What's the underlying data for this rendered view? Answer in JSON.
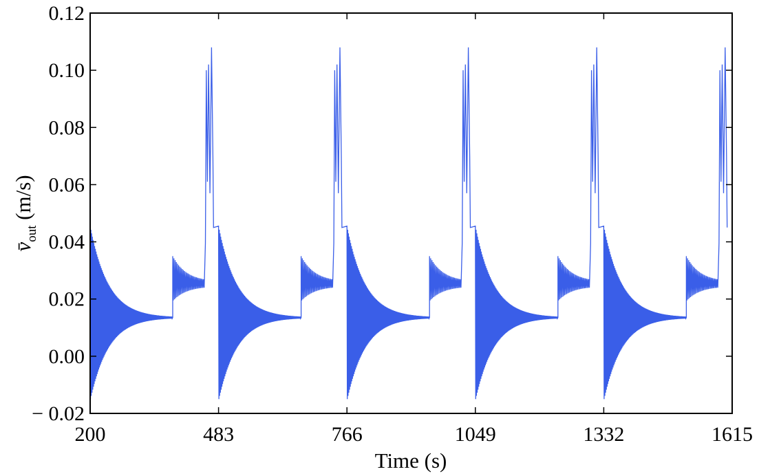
{
  "chart_data": {
    "type": "line",
    "title": "",
    "xlabel": "Time (s)",
    "ylabel_symbol": "v̄",
    "ylabel_subscript": "out",
    "ylabel_unit": " (m/s)",
    "xlim": [
      200,
      1615
    ],
    "ylim": [
      -0.02,
      0.12
    ],
    "x_ticks": [
      200,
      483,
      766,
      1049,
      1332,
      1615
    ],
    "x_tick_labels": [
      "200",
      "483",
      "766",
      "1049",
      "1332",
      "1615"
    ],
    "y_ticks": [
      -0.02,
      0.0,
      0.02,
      0.04,
      0.06,
      0.08,
      0.1,
      0.12
    ],
    "y_tick_labels": [
      "− 0.02",
      "0.00",
      "0.02",
      "0.04",
      "0.06",
      "0.08",
      "0.10",
      "0.12"
    ],
    "grid": false,
    "legend": "none",
    "line_color": "#3a5ee8",
    "period": 283,
    "cycle_template": {
      "description_points": [
        {
          "x": 200,
          "y": 0.045
        },
        {
          "x": 200.5,
          "y": -0.015
        },
        {
          "x": 380,
          "y": 0.0135
        },
        {
          "x": 382,
          "y": 0.035
        },
        {
          "x": 385,
          "y": 0.03
        },
        {
          "x": 450,
          "y": 0.028
        },
        {
          "x": 454,
          "y": 0.0395
        },
        {
          "x": 456,
          "y": 0.1
        },
        {
          "x": 459,
          "y": 0.061
        },
        {
          "x": 462,
          "y": 0.102
        },
        {
          "x": 465,
          "y": 0.057
        },
        {
          "x": 468,
          "y": 0.108
        },
        {
          "x": 473,
          "y": 0.057
        },
        {
          "x": 476,
          "y": 0.045
        }
      ]
    },
    "series": [
      {
        "values_summary": "Repeating cycle every 283 s: damped oscillation from ~0.045/-0.015 converging to ~0.0135, step to ~0.035 decaying oscillation around ~0.026, then three peaks ~0.100, ~0.102, ~0.108 before dropping again."
      }
    ]
  }
}
